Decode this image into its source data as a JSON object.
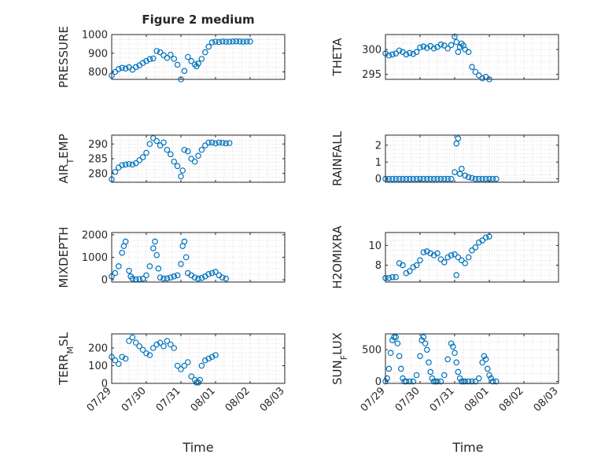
{
  "figure": {
    "title": "Figure 2 medium",
    "xlabel": "Time",
    "date_ticks": [
      "07/29",
      "07/30",
      "07/31",
      "08/01",
      "08/02",
      "08/03"
    ],
    "marker_color": "#0072BD"
  },
  "chart_data": [
    {
      "type": "scatter",
      "name": "pressure",
      "ylabel": "PRESSURE",
      "sub": "",
      "ylim": [
        760,
        1000
      ],
      "yticks": [
        800,
        900,
        1000
      ],
      "grid": true,
      "show_x_ticklabels": false,
      "x": [
        0.0,
        0.1,
        0.2,
        0.3,
        0.4,
        0.5,
        0.6,
        0.7,
        0.8,
        0.9,
        1.0,
        1.1,
        1.2,
        1.3,
        1.4,
        1.5,
        1.6,
        1.7,
        1.8,
        1.9,
        2.0,
        2.1,
        2.2,
        2.3,
        2.4,
        2.45,
        2.5,
        2.6,
        2.7,
        2.8,
        2.9,
        3.0,
        3.1,
        3.2,
        3.3,
        3.4,
        3.5,
        3.6,
        3.7,
        3.8,
        3.9,
        4.0
      ],
      "y": [
        780,
        800,
        815,
        822,
        818,
        825,
        812,
        826,
        835,
        848,
        858,
        868,
        872,
        912,
        905,
        890,
        875,
        892,
        870,
        838,
        760,
        805,
        880,
        858,
        840,
        830,
        845,
        870,
        905,
        935,
        958,
        962,
        960,
        963,
        962,
        962,
        963,
        964,
        963,
        962,
        963,
        963
      ]
    },
    {
      "type": "scatter",
      "name": "theta",
      "ylabel": "THETA",
      "sub": "",
      "ylim": [
        294,
        303
      ],
      "yticks": [
        295,
        300
      ],
      "grid": true,
      "show_x_ticklabels": false,
      "x": [
        0.0,
        0.1,
        0.2,
        0.3,
        0.4,
        0.5,
        0.6,
        0.7,
        0.8,
        0.9,
        1.0,
        1.1,
        1.2,
        1.3,
        1.4,
        1.5,
        1.6,
        1.7,
        1.8,
        1.9,
        2.0,
        2.05,
        2.1,
        2.15,
        2.2,
        2.25,
        2.3,
        2.4,
        2.5,
        2.6,
        2.7,
        2.8,
        2.9,
        3.0
      ],
      "y": [
        299.2,
        298.8,
        299.0,
        299.2,
        299.8,
        299.5,
        299.0,
        299.3,
        299.1,
        299.5,
        300.4,
        300.6,
        300.3,
        300.7,
        300.2,
        300.5,
        301.0,
        300.8,
        300.2,
        300.9,
        302.6,
        301.5,
        299.5,
        300.5,
        301.2,
        300.8,
        300.0,
        299.5,
        296.5,
        295.5,
        294.8,
        294.2,
        294.5,
        294.0
      ]
    },
    {
      "type": "scatter",
      "name": "air_temp",
      "ylabel": "AIR",
      "sub": "T",
      "ylabel2": "EMP",
      "ylim": [
        277,
        293
      ],
      "yticks": [
        280,
        285,
        290
      ],
      "grid": true,
      "show_x_ticklabels": false,
      "x": [
        0.0,
        0.1,
        0.2,
        0.3,
        0.4,
        0.5,
        0.6,
        0.7,
        0.8,
        0.9,
        1.0,
        1.1,
        1.2,
        1.3,
        1.4,
        1.5,
        1.6,
        1.7,
        1.8,
        1.9,
        2.0,
        2.05,
        2.1,
        2.2,
        2.3,
        2.4,
        2.5,
        2.6,
        2.7,
        2.8,
        2.9,
        3.0,
        3.1,
        3.2,
        3.3,
        3.4
      ],
      "y": [
        278.0,
        280.5,
        282.0,
        282.8,
        283.0,
        283.2,
        283.0,
        283.5,
        284.5,
        285.5,
        287.0,
        290.0,
        292.0,
        291.0,
        289.5,
        290.5,
        288.0,
        286.5,
        284.0,
        282.5,
        279.0,
        281.0,
        288.0,
        287.5,
        285.0,
        284.0,
        286.0,
        288.0,
        289.5,
        290.5,
        290.5,
        290.2,
        290.5,
        290.4,
        290.2,
        290.3
      ]
    },
    {
      "type": "scatter",
      "name": "rainfall",
      "ylabel": "RAINFALL",
      "sub": "",
      "ylim": [
        -0.2,
        2.6
      ],
      "yticks": [
        0,
        1,
        2
      ],
      "grid": true,
      "show_x_ticklabels": false,
      "x": [
        0.0,
        0.1,
        0.2,
        0.3,
        0.4,
        0.5,
        0.6,
        0.7,
        0.8,
        0.9,
        1.0,
        1.1,
        1.2,
        1.3,
        1.4,
        1.5,
        1.6,
        1.7,
        1.8,
        1.9,
        2.0,
        2.05,
        2.1,
        2.15,
        2.2,
        2.3,
        2.4,
        2.5,
        2.6,
        2.7,
        2.8,
        2.9,
        3.0,
        3.1,
        3.2
      ],
      "y": [
        0,
        0,
        0,
        0,
        0,
        0,
        0,
        0,
        0,
        0,
        0,
        0,
        0,
        0,
        0,
        0,
        0,
        0,
        0,
        0,
        0.4,
        2.1,
        2.4,
        0.3,
        0.6,
        0.2,
        0.1,
        0.05,
        0,
        0,
        0,
        0,
        0,
        0,
        0
      ]
    },
    {
      "type": "scatter",
      "name": "mixdepth",
      "ylabel": "MIXDEPTH",
      "sub": "",
      "ylim": [
        -100,
        2100
      ],
      "yticks": [
        0,
        1000,
        2000
      ],
      "grid": true,
      "show_x_ticklabels": false,
      "x": [
        0.0,
        0.1,
        0.2,
        0.3,
        0.35,
        0.4,
        0.5,
        0.55,
        0.6,
        0.7,
        0.8,
        0.9,
        1.0,
        1.1,
        1.2,
        1.25,
        1.3,
        1.35,
        1.4,
        1.5,
        1.6,
        1.7,
        1.8,
        1.9,
        2.0,
        2.05,
        2.1,
        2.15,
        2.2,
        2.3,
        2.4,
        2.5,
        2.6,
        2.7,
        2.8,
        2.9,
        3.0,
        3.1,
        3.2,
        3.3
      ],
      "y": [
        150,
        300,
        600,
        1200,
        1500,
        1700,
        400,
        150,
        50,
        20,
        30,
        50,
        200,
        600,
        1400,
        1700,
        1100,
        500,
        100,
        50,
        60,
        100,
        150,
        200,
        700,
        1500,
        1700,
        1000,
        300,
        200,
        100,
        50,
        80,
        150,
        250,
        300,
        350,
        200,
        100,
        50
      ]
    },
    {
      "type": "scatter",
      "name": "h2omixra",
      "ylabel": "H2OMIXRA",
      "sub": "",
      "ylim": [
        6.3,
        11.3
      ],
      "yticks": [
        8,
        10
      ],
      "grid": true,
      "show_x_ticklabels": false,
      "x": [
        0.0,
        0.1,
        0.2,
        0.3,
        0.4,
        0.5,
        0.6,
        0.7,
        0.8,
        0.9,
        1.0,
        1.1,
        1.2,
        1.3,
        1.4,
        1.5,
        1.6,
        1.7,
        1.8,
        1.9,
        2.0,
        2.05,
        2.1,
        2.2,
        2.3,
        2.4,
        2.5,
        2.6,
        2.7,
        2.8,
        2.9,
        3.0
      ],
      "y": [
        6.7,
        6.7,
        6.8,
        6.8,
        8.2,
        8.0,
        7.2,
        7.4,
        7.8,
        8.0,
        8.5,
        9.3,
        9.4,
        9.2,
        9.0,
        9.2,
        8.6,
        8.3,
        8.8,
        9.0,
        9.1,
        7.0,
        8.8,
        8.5,
        8.2,
        8.8,
        9.5,
        9.8,
        10.3,
        10.5,
        10.8,
        10.9
      ]
    },
    {
      "type": "scatter",
      "name": "terr_msl",
      "ylabel": "TERR",
      "sub": "M",
      "ylabel2": "SL",
      "ylim": [
        0,
        280
      ],
      "yticks": [
        0,
        100,
        200
      ],
      "grid": true,
      "show_x_ticklabels": true,
      "x": [
        0.0,
        0.1,
        0.2,
        0.3,
        0.4,
        0.5,
        0.6,
        0.7,
        0.8,
        0.9,
        1.0,
        1.1,
        1.2,
        1.3,
        1.4,
        1.5,
        1.6,
        1.7,
        1.8,
        1.9,
        2.0,
        2.1,
        2.2,
        2.3,
        2.4,
        2.45,
        2.5,
        2.55,
        2.6,
        2.7,
        2.8,
        2.9,
        3.0
      ],
      "y": [
        150,
        130,
        110,
        150,
        140,
        240,
        260,
        230,
        210,
        190,
        170,
        160,
        200,
        220,
        230,
        210,
        240,
        220,
        200,
        100,
        80,
        100,
        120,
        40,
        20,
        5,
        5,
        20,
        100,
        130,
        140,
        150,
        160
      ]
    },
    {
      "type": "scatter",
      "name": "sunflux",
      "ylabel": "SUN",
      "sub": "F",
      "ylabel2": "LUX",
      "ylim": [
        -30,
        750
      ],
      "yticks": [
        0,
        500
      ],
      "grid": true,
      "show_x_ticklabels": true,
      "x": [
        0.0,
        0.05,
        0.1,
        0.15,
        0.2,
        0.25,
        0.3,
        0.35,
        0.4,
        0.45,
        0.5,
        0.55,
        0.6,
        0.7,
        0.8,
        0.9,
        1.0,
        1.05,
        1.1,
        1.15,
        1.2,
        1.25,
        1.3,
        1.35,
        1.4,
        1.45,
        1.5,
        1.6,
        1.7,
        1.8,
        1.9,
        1.95,
        2.0,
        2.05,
        2.1,
        2.15,
        2.2,
        2.25,
        2.3,
        2.4,
        2.5,
        2.6,
        2.7,
        2.8,
        2.85,
        2.9,
        2.95,
        3.0,
        3.05,
        3.1,
        3.2
      ],
      "y": [
        0,
        50,
        200,
        450,
        650,
        700,
        700,
        600,
        400,
        200,
        50,
        0,
        0,
        0,
        0,
        100,
        400,
        650,
        700,
        600,
        500,
        300,
        150,
        50,
        0,
        0,
        0,
        0,
        100,
        350,
        600,
        550,
        450,
        300,
        150,
        50,
        0,
        0,
        0,
        0,
        0,
        0,
        50,
        300,
        400,
        350,
        200,
        100,
        50,
        0,
        0
      ]
    }
  ]
}
